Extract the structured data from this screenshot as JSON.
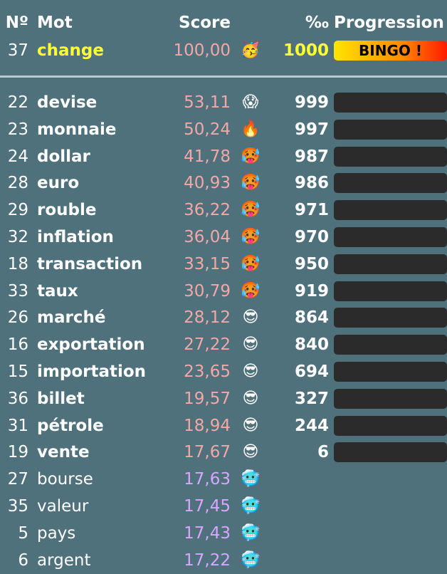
{
  "header": {
    "num": "Nº",
    "word": "Mot",
    "score": "Score",
    "permille": "‰",
    "progress": "Progression"
  },
  "current": {
    "num": "37",
    "word": "change",
    "score": "100,00",
    "emoji": "🥳",
    "permille": "1000",
    "bingo": "BINGO !"
  },
  "colors": {
    "background": "#4f717c",
    "warm_score": "#f4a7a7",
    "cold_score": "#d8a6ff",
    "highlight": "#ffff33"
  },
  "rows": [
    {
      "num": "22",
      "word": "devise",
      "score": "53,11",
      "emoji": "😱",
      "permille": "999",
      "progress": 0.999
    },
    {
      "num": "23",
      "word": "monnaie",
      "score": "50,24",
      "emoji": "🔥",
      "permille": "997",
      "progress": 0.997
    },
    {
      "num": "24",
      "word": "dollar",
      "score": "41,78",
      "emoji": "🥵",
      "permille": "987",
      "progress": 0.987
    },
    {
      "num": "28",
      "word": "euro",
      "score": "40,93",
      "emoji": "🥵",
      "permille": "986",
      "progress": 0.986
    },
    {
      "num": "29",
      "word": "rouble",
      "score": "36,22",
      "emoji": "🥵",
      "permille": "971",
      "progress": 0.971
    },
    {
      "num": "32",
      "word": "inflation",
      "score": "36,04",
      "emoji": "🥵",
      "permille": "970",
      "progress": 0.97
    },
    {
      "num": "18",
      "word": "transaction",
      "score": "33,15",
      "emoji": "🥵",
      "permille": "950",
      "progress": 0.95
    },
    {
      "num": "33",
      "word": "taux",
      "score": "30,79",
      "emoji": "🥵",
      "permille": "919",
      "progress": 0.919
    },
    {
      "num": "26",
      "word": "marché",
      "score": "28,12",
      "emoji": "😎",
      "permille": "864",
      "progress": 0.864
    },
    {
      "num": "16",
      "word": "exportation",
      "score": "27,22",
      "emoji": "😎",
      "permille": "840",
      "progress": 0.84
    },
    {
      "num": "15",
      "word": "importation",
      "score": "23,65",
      "emoji": "😎",
      "permille": "694",
      "progress": 0.694
    },
    {
      "num": "36",
      "word": "billet",
      "score": "19,57",
      "emoji": "😎",
      "permille": "327",
      "progress": 0.327
    },
    {
      "num": "31",
      "word": "pétrole",
      "score": "18,94",
      "emoji": "😎",
      "permille": "244",
      "progress": 0.244
    },
    {
      "num": "19",
      "word": "vente",
      "score": "17,67",
      "emoji": "😎",
      "permille": "6",
      "progress": 0.006
    },
    {
      "num": "27",
      "word": "bourse",
      "score": "17,63",
      "emoji": "🥶",
      "permille": "",
      "progress": null
    },
    {
      "num": "35",
      "word": "valeur",
      "score": "17,45",
      "emoji": "🥶",
      "permille": "",
      "progress": null
    },
    {
      "num": "5",
      "word": "pays",
      "score": "17,43",
      "emoji": "🥶",
      "permille": "",
      "progress": null
    },
    {
      "num": "6",
      "word": "argent",
      "score": "17,22",
      "emoji": "🥶",
      "permille": "",
      "progress": null
    }
  ]
}
